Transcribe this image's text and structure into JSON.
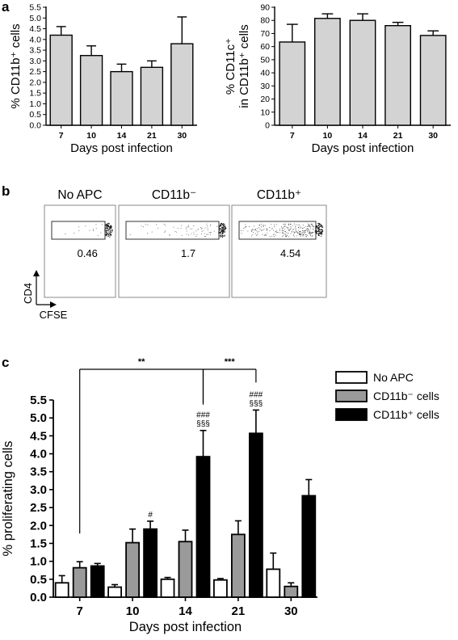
{
  "panel_letters": {
    "a": "a",
    "b": "b",
    "c": "c"
  },
  "chart_data": [
    {
      "id": "a-left",
      "type": "bar",
      "categories": [
        "7",
        "10",
        "14",
        "21",
        "30"
      ],
      "values": [
        4.2,
        3.25,
        2.5,
        2.7,
        3.8
      ],
      "errors": [
        0.4,
        0.45,
        0.35,
        0.3,
        1.25
      ],
      "ylim": [
        0,
        5.5
      ],
      "yticks": [
        "0.0",
        "0.5",
        "1.0",
        "1.5",
        "2.0",
        "2.5",
        "3.0",
        "3.5",
        "4.0",
        "4.5",
        "5.0",
        "5.5"
      ],
      "ylabel": "% CD11b⁺ cells",
      "xlabel": "Days post infection",
      "bar_color": "#d3d3d3"
    },
    {
      "id": "a-right",
      "type": "bar",
      "categories": [
        "7",
        "10",
        "14",
        "21",
        "30"
      ],
      "values": [
        63.5,
        81.5,
        80.0,
        76.0,
        68.5
      ],
      "errors": [
        13.5,
        3.5,
        5.0,
        2.5,
        3.5
      ],
      "ylim": [
        0,
        90
      ],
      "yticks": [
        "0",
        "10",
        "20",
        "30",
        "40",
        "50",
        "60",
        "70",
        "80",
        "90"
      ],
      "ylabel_line1": "% CD11c⁺",
      "ylabel_line2": "in CD11b⁺ cells",
      "xlabel": "Days post infection",
      "bar_color": "#d3d3d3"
    },
    {
      "id": "c",
      "type": "bar",
      "categories": [
        "7",
        "10",
        "14",
        "21",
        "30"
      ],
      "series": [
        {
          "name": "No APC",
          "values": [
            0.4,
            0.28,
            0.5,
            0.48,
            0.78
          ],
          "errors": [
            0.2,
            0.07,
            0.05,
            0.04,
            0.45
          ],
          "color": "#ffffff"
        },
        {
          "name": "CD11b⁻ cells",
          "values": [
            0.82,
            1.52,
            1.55,
            1.75,
            0.3
          ],
          "errors": [
            0.17,
            0.38,
            0.32,
            0.38,
            0.1
          ],
          "color": "#9a9a9a"
        },
        {
          "name": "CD11b⁺ cells",
          "values": [
            0.87,
            1.9,
            3.92,
            4.57,
            2.83
          ],
          "errors": [
            0.07,
            0.22,
            0.73,
            0.65,
            0.45
          ],
          "color": "#000000"
        }
      ],
      "ylim": [
        0,
        5.5
      ],
      "yticks": [
        "0.0",
        "0.5",
        "1.0",
        "1.5",
        "2.0",
        "2.5",
        "3.0",
        "3.5",
        "4.0",
        "4.5",
        "5.0",
        "5.5"
      ],
      "ylabel": "% proliferating cells",
      "xlabel": "Days post infection",
      "legend_position": "top-right",
      "annotations": [
        {
          "category": "10",
          "series": 2,
          "lines": [
            "#"
          ]
        },
        {
          "category": "14",
          "series": 2,
          "lines": [
            "###",
            "§§§"
          ]
        },
        {
          "category": "21",
          "series": 2,
          "lines": [
            "###",
            "§§§"
          ]
        }
      ],
      "significance": [
        {
          "from": "7",
          "to": "14",
          "label": "**"
        },
        {
          "from": "14",
          "to": "21",
          "label": "***"
        }
      ]
    }
  ],
  "panel_b": {
    "plots": [
      {
        "title": "No APC",
        "gate_value": "0.46",
        "density": 0.05
      },
      {
        "title": "CD11b⁻",
        "gate_value": "1.7",
        "density": 0.25
      },
      {
        "title": "CD11b⁺",
        "gate_value": "4.54",
        "density": 1.0
      }
    ],
    "y_axis_label": "CD4",
    "x_axis_label": "CFSE"
  }
}
